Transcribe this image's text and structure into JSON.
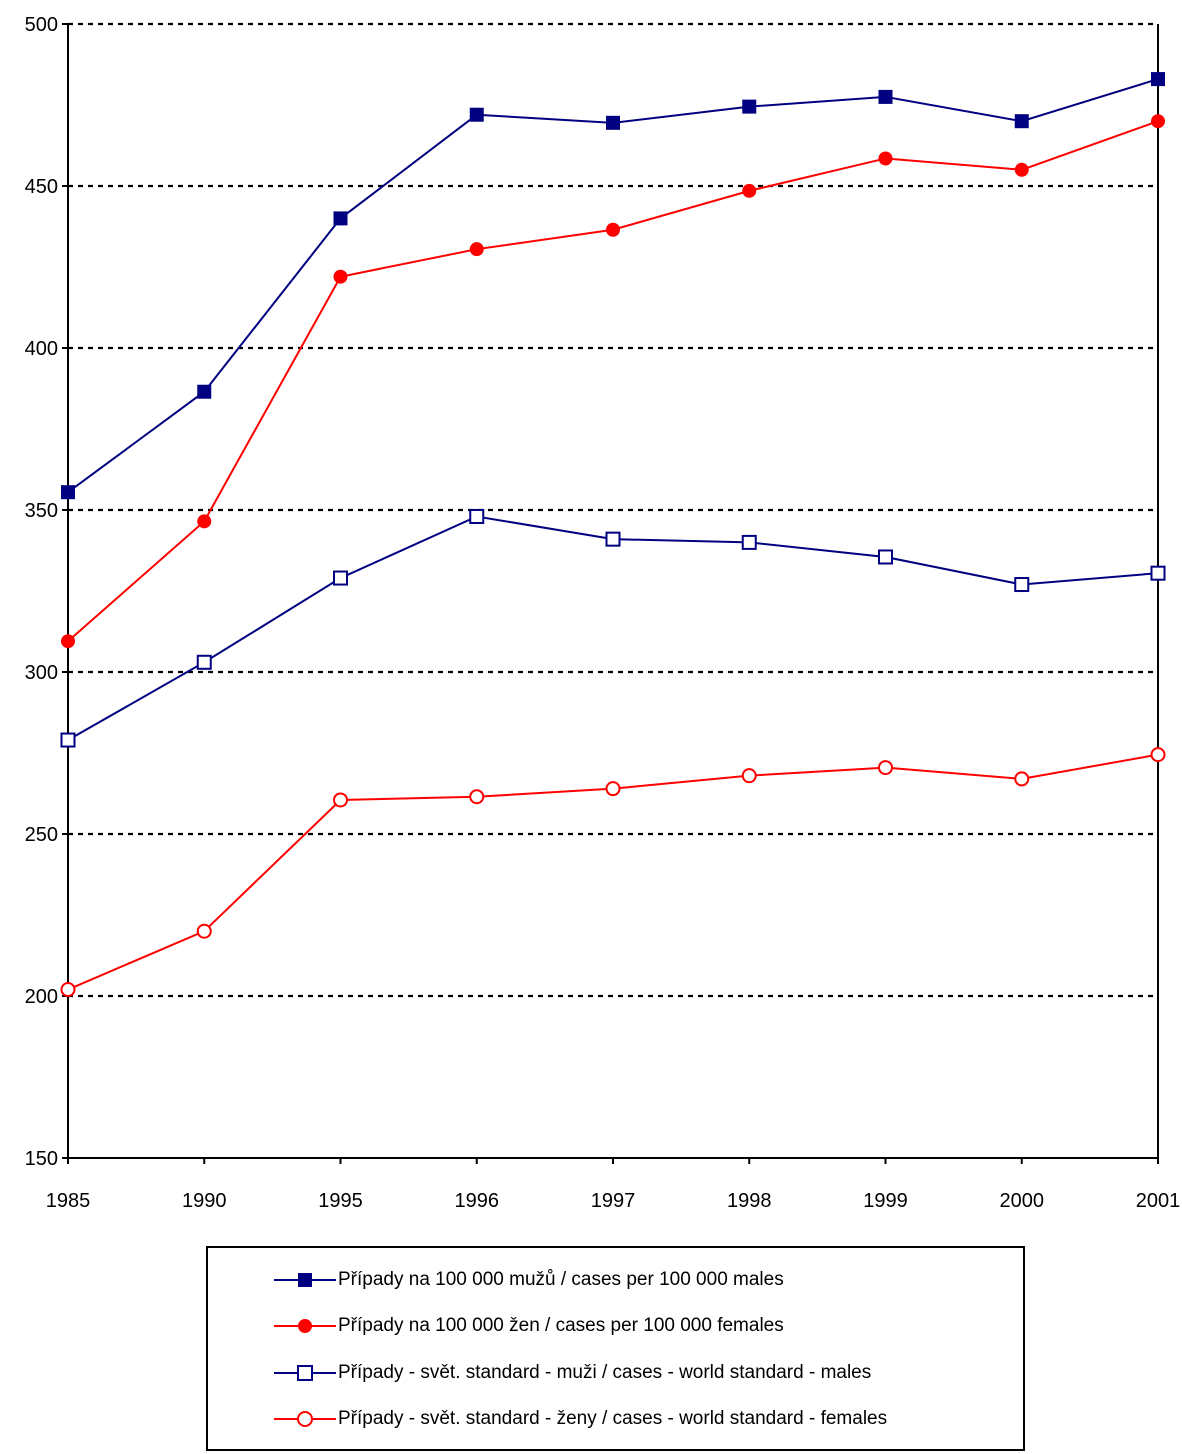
{
  "chart_data": {
    "type": "line",
    "categories": [
      "1985",
      "1990",
      "1995",
      "1996",
      "1997",
      "1998",
      "1999",
      "2000",
      "2001"
    ],
    "ylim": [
      150,
      500
    ],
    "yticks": [
      150,
      200,
      250,
      300,
      350,
      400,
      450,
      500
    ],
    "grid": "horizontal dotted",
    "legend_position": "bottom",
    "series": [
      {
        "name": "Případy na 100 000 mužů / cases per 100 000 males",
        "color": "#000080",
        "marker": "filled-square",
        "values": [
          355.5,
          386.5,
          440,
          472,
          469.5,
          474.5,
          477.5,
          470,
          483
        ]
      },
      {
        "name": "Případy na 100 000 žen / cases per 100 000 females",
        "color": "#ff0000",
        "marker": "filled-circle",
        "values": [
          309.5,
          346.5,
          422,
          430.5,
          436.5,
          448.5,
          458.5,
          455,
          470
        ]
      },
      {
        "name": "Případy - svět. standard - muži / cases - world standard - males",
        "color": "#000080",
        "marker": "open-square",
        "values": [
          279,
          303,
          329,
          348,
          341,
          340,
          335.5,
          327,
          330.5
        ]
      },
      {
        "name": "Případy - svět. standard - ženy / cases - world standard - females",
        "color": "#ff0000",
        "marker": "open-circle",
        "values": [
          202,
          220,
          260.5,
          261.5,
          264,
          268,
          270.5,
          267,
          274.5
        ]
      }
    ]
  }
}
